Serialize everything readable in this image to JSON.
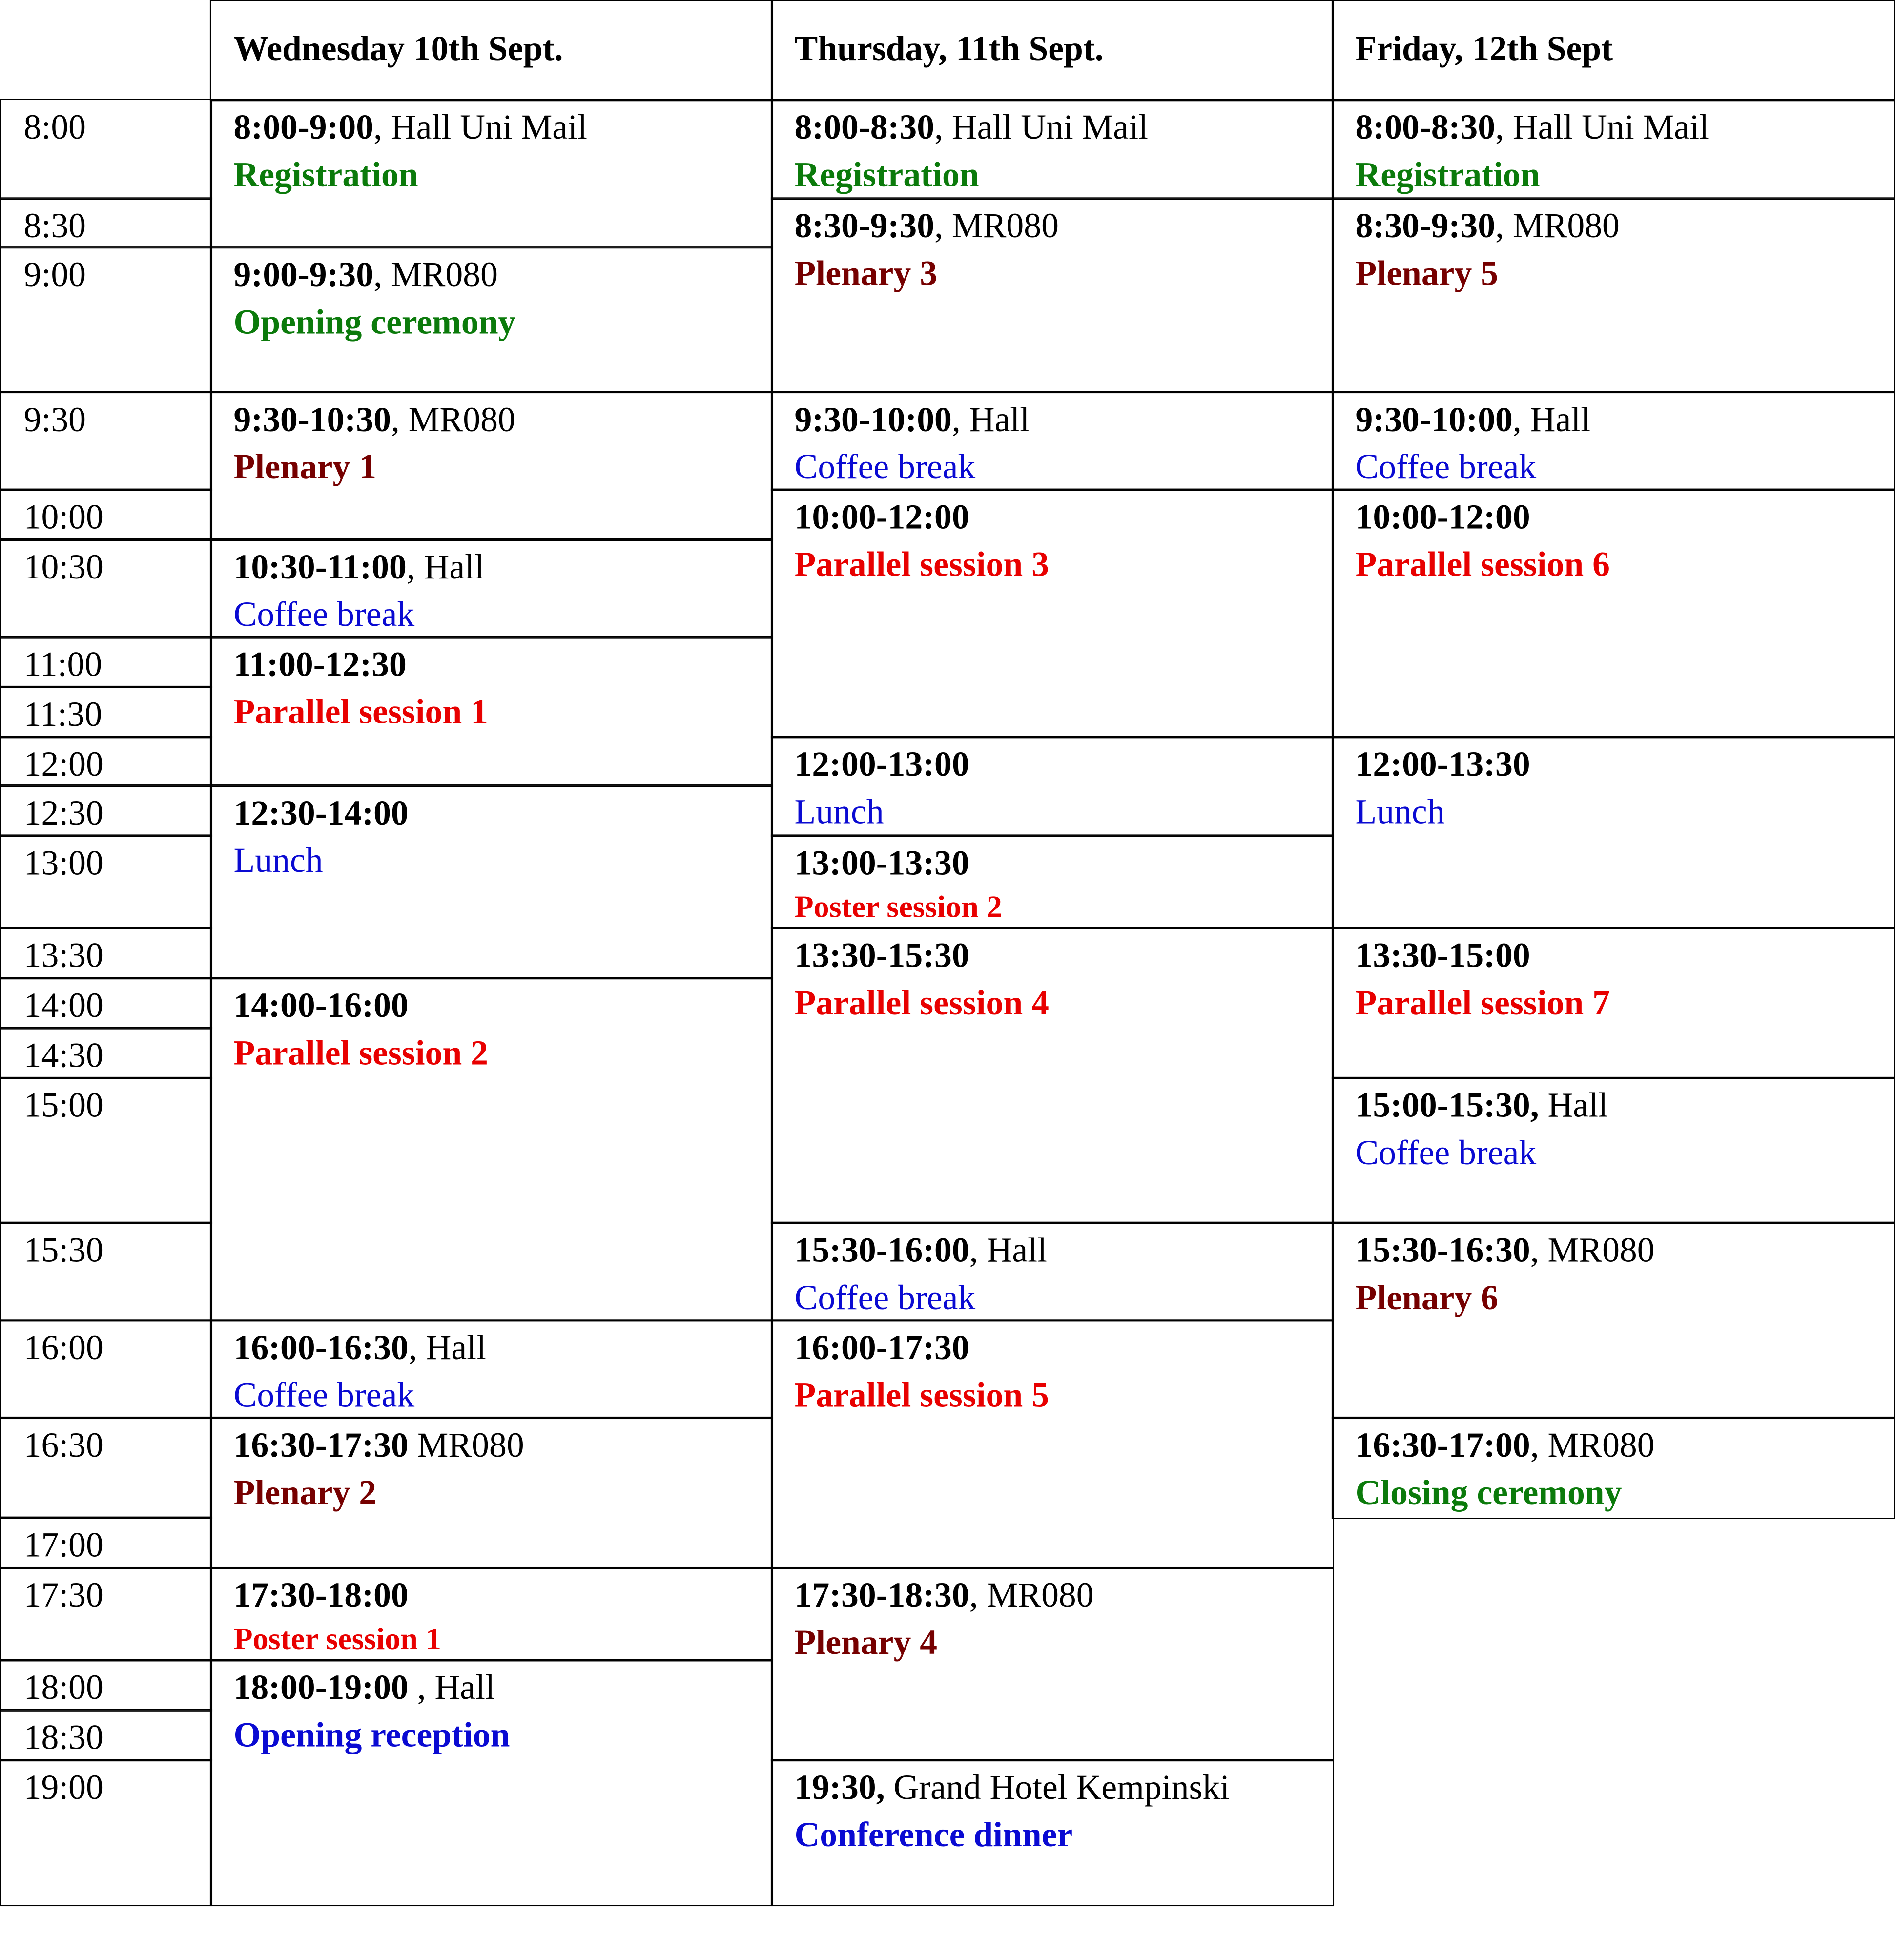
{
  "header": {
    "days": [
      "Wednesday 10th Sept.",
      "Thursday, 11th Sept.",
      "Friday, 12th Sept"
    ]
  },
  "times": [
    "8:00",
    "8:30",
    "9:00",
    "9:30",
    "10:00",
    "10:30",
    "11:00",
    "11:30",
    "12:00",
    "12:30",
    "13:00",
    "13:30",
    "14:00",
    "14:30",
    "15:00",
    "15:30",
    "16:00",
    "16:30",
    "17:00",
    "17:30",
    "18:00",
    "18:30",
    "19:00"
  ],
  "columns": [
    {
      "sessions": [
        {
          "time": "8:00-9:00",
          "place": ", Hall Uni Mail",
          "title": "Registration",
          "color": "#0b7a0b",
          "bold": true
        },
        {
          "time": "9:00-9:30",
          "place": ", MR080",
          "title": "Opening ceremony",
          "color": "#0b7a0b",
          "bold": true
        },
        {
          "time": "9:30-10:30",
          "place": ", MR080",
          "title": "Plenary 1",
          "color": "#760000",
          "bold": true
        },
        {
          "time": "10:30-11:00",
          "place": ", Hall",
          "title": "Coffee break",
          "color": "#0a0ad2",
          "bold": false
        },
        {
          "time": "11:00-12:30",
          "place": "",
          "title": "Parallel session 1",
          "color": "#e80000",
          "bold": true
        },
        {
          "time": "12:30-14:00",
          "place": "",
          "title": "Lunch",
          "color": "#0a0ad2",
          "bold": false
        },
        {
          "time": "14:00-16:00",
          "place": "",
          "title": "Parallel session 2",
          "color": "#e80000",
          "bold": true
        },
        {
          "time": "16:00-16:30",
          "place": ", Hall",
          "title": "Coffee break",
          "color": "#0a0ad2",
          "bold": false
        },
        {
          "time": "16:30-17:30",
          "place": " MR080",
          "title": "Plenary 2",
          "color": "#760000",
          "bold": true
        },
        {
          "time": "17:30-18:00",
          "place": "",
          "title": "Poster session 1",
          "color": "#e80000",
          "bold": true
        },
        {
          "time": "18:00-19:00",
          "place": " , Hall",
          "title": "Opening reception",
          "color": "#0a0ad2",
          "bold": true
        }
      ]
    },
    {
      "sessions": [
        {
          "time": "8:00-8:30",
          "place": ", Hall Uni Mail",
          "title": "Registration",
          "color": "#0b7a0b",
          "bold": true
        },
        {
          "time": "8:30-9:30",
          "place": ", MR080",
          "title": "Plenary 3",
          "color": "#760000",
          "bold": true
        },
        {
          "time": "9:30-10:00",
          "place": ", Hall",
          "title": "Coffee break",
          "color": "#0a0ad2",
          "bold": false
        },
        {
          "time": "10:00-12:00",
          "place": "",
          "title": "Parallel session 3",
          "color": "#e80000",
          "bold": true
        },
        {
          "time": "12:00-13:00",
          "place": "",
          "title": "Lunch",
          "color": "#0a0ad2",
          "bold": false
        },
        {
          "time": "13:00-13:30",
          "place": "",
          "title": "Poster session 2",
          "color": "#e80000",
          "bold": true
        },
        {
          "time": "13:30-15:30",
          "place": "",
          "title": "Parallel session 4",
          "color": "#e80000",
          "bold": true
        },
        {
          "time": "15:30-16:00",
          "place": ", Hall",
          "title": "Coffee break",
          "color": "#0a0ad2",
          "bold": false
        },
        {
          "time": "16:00-17:30",
          "place": "",
          "title": "Parallel session 5",
          "color": "#e80000",
          "bold": true
        },
        {
          "time": "17:30-18:30",
          "place": ", MR080",
          "title": "Plenary 4",
          "color": "#760000",
          "bold": true
        },
        {
          "time": "19:30,",
          "place": " Grand Hotel Kempinski",
          "title": "Conference dinner",
          "color": "#0a0ad2",
          "bold": true
        }
      ]
    },
    {
      "sessions": [
        {
          "time": "8:00-8:30",
          "place": ", Hall Uni Mail",
          "title": "Registration",
          "color": "#0b7a0b",
          "bold": true
        },
        {
          "time": "8:30-9:30",
          "place": ", MR080",
          "title": "Plenary 5",
          "color": "#760000",
          "bold": true
        },
        {
          "time": "9:30-10:00",
          "place": ", Hall",
          "title": "Coffee break",
          "color": "#0a0ad2",
          "bold": false
        },
        {
          "time": "10:00-12:00",
          "place": "",
          "title": "Parallel session 6",
          "color": "#e80000",
          "bold": true
        },
        {
          "time": "12:00-13:30",
          "place": "",
          "title": "Lunch",
          "color": "#0a0ad2",
          "bold": false
        },
        {
          "time": "13:30-15:00",
          "place": "",
          "title": "Parallel session 7",
          "color": "#e80000",
          "bold": true
        },
        {
          "time": "15:00-15:30,",
          "place": " Hall",
          "title": "Coffee break",
          "color": "#0a0ad2",
          "bold": false
        },
        {
          "time": "15:30-16:30",
          "place": ", MR080",
          "title": "Plenary 6",
          "color": "#760000",
          "bold": true
        },
        {
          "time": "16:30-17:00",
          "place": ", MR080",
          "title": "Closing ceremony",
          "color": "#0b7a0b",
          "bold": true
        }
      ]
    }
  ]
}
